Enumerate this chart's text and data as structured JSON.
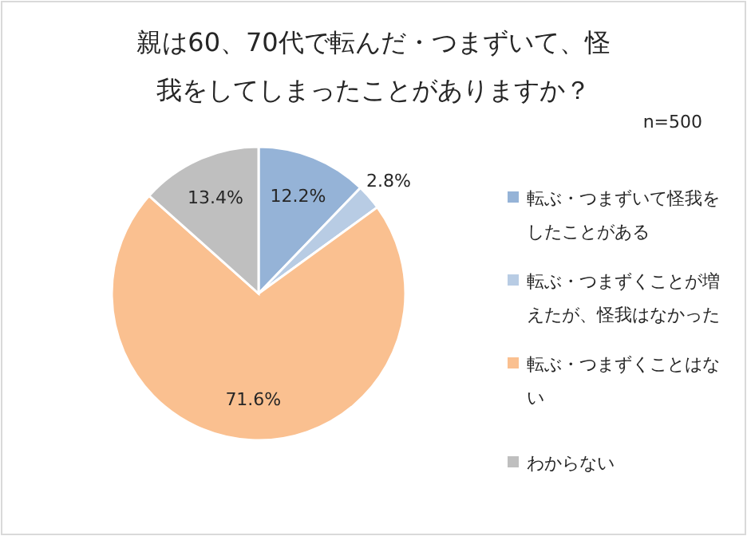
{
  "chart_data": {
    "type": "pie",
    "title": "親は60、70代で転んだ・つまずいて、怪我をしてしまったことがありますか？",
    "annotations": [
      "n=500"
    ],
    "categories": [
      "転ぶ・つまずいて怪我をしたことがある",
      "転ぶ・つまずくことが増えたが、怪我はなかった",
      "転ぶ・つまずくことはない",
      "わからない"
    ],
    "values": [
      12.2,
      2.8,
      71.6,
      13.4
    ],
    "colors": [
      "#95b3d7",
      "#b8cce4",
      "#fac090",
      "#bfbfbf"
    ],
    "value_labels": [
      "12.2%",
      "2.8%",
      "71.6%",
      "13.4%"
    ],
    "legend": "right"
  }
}
